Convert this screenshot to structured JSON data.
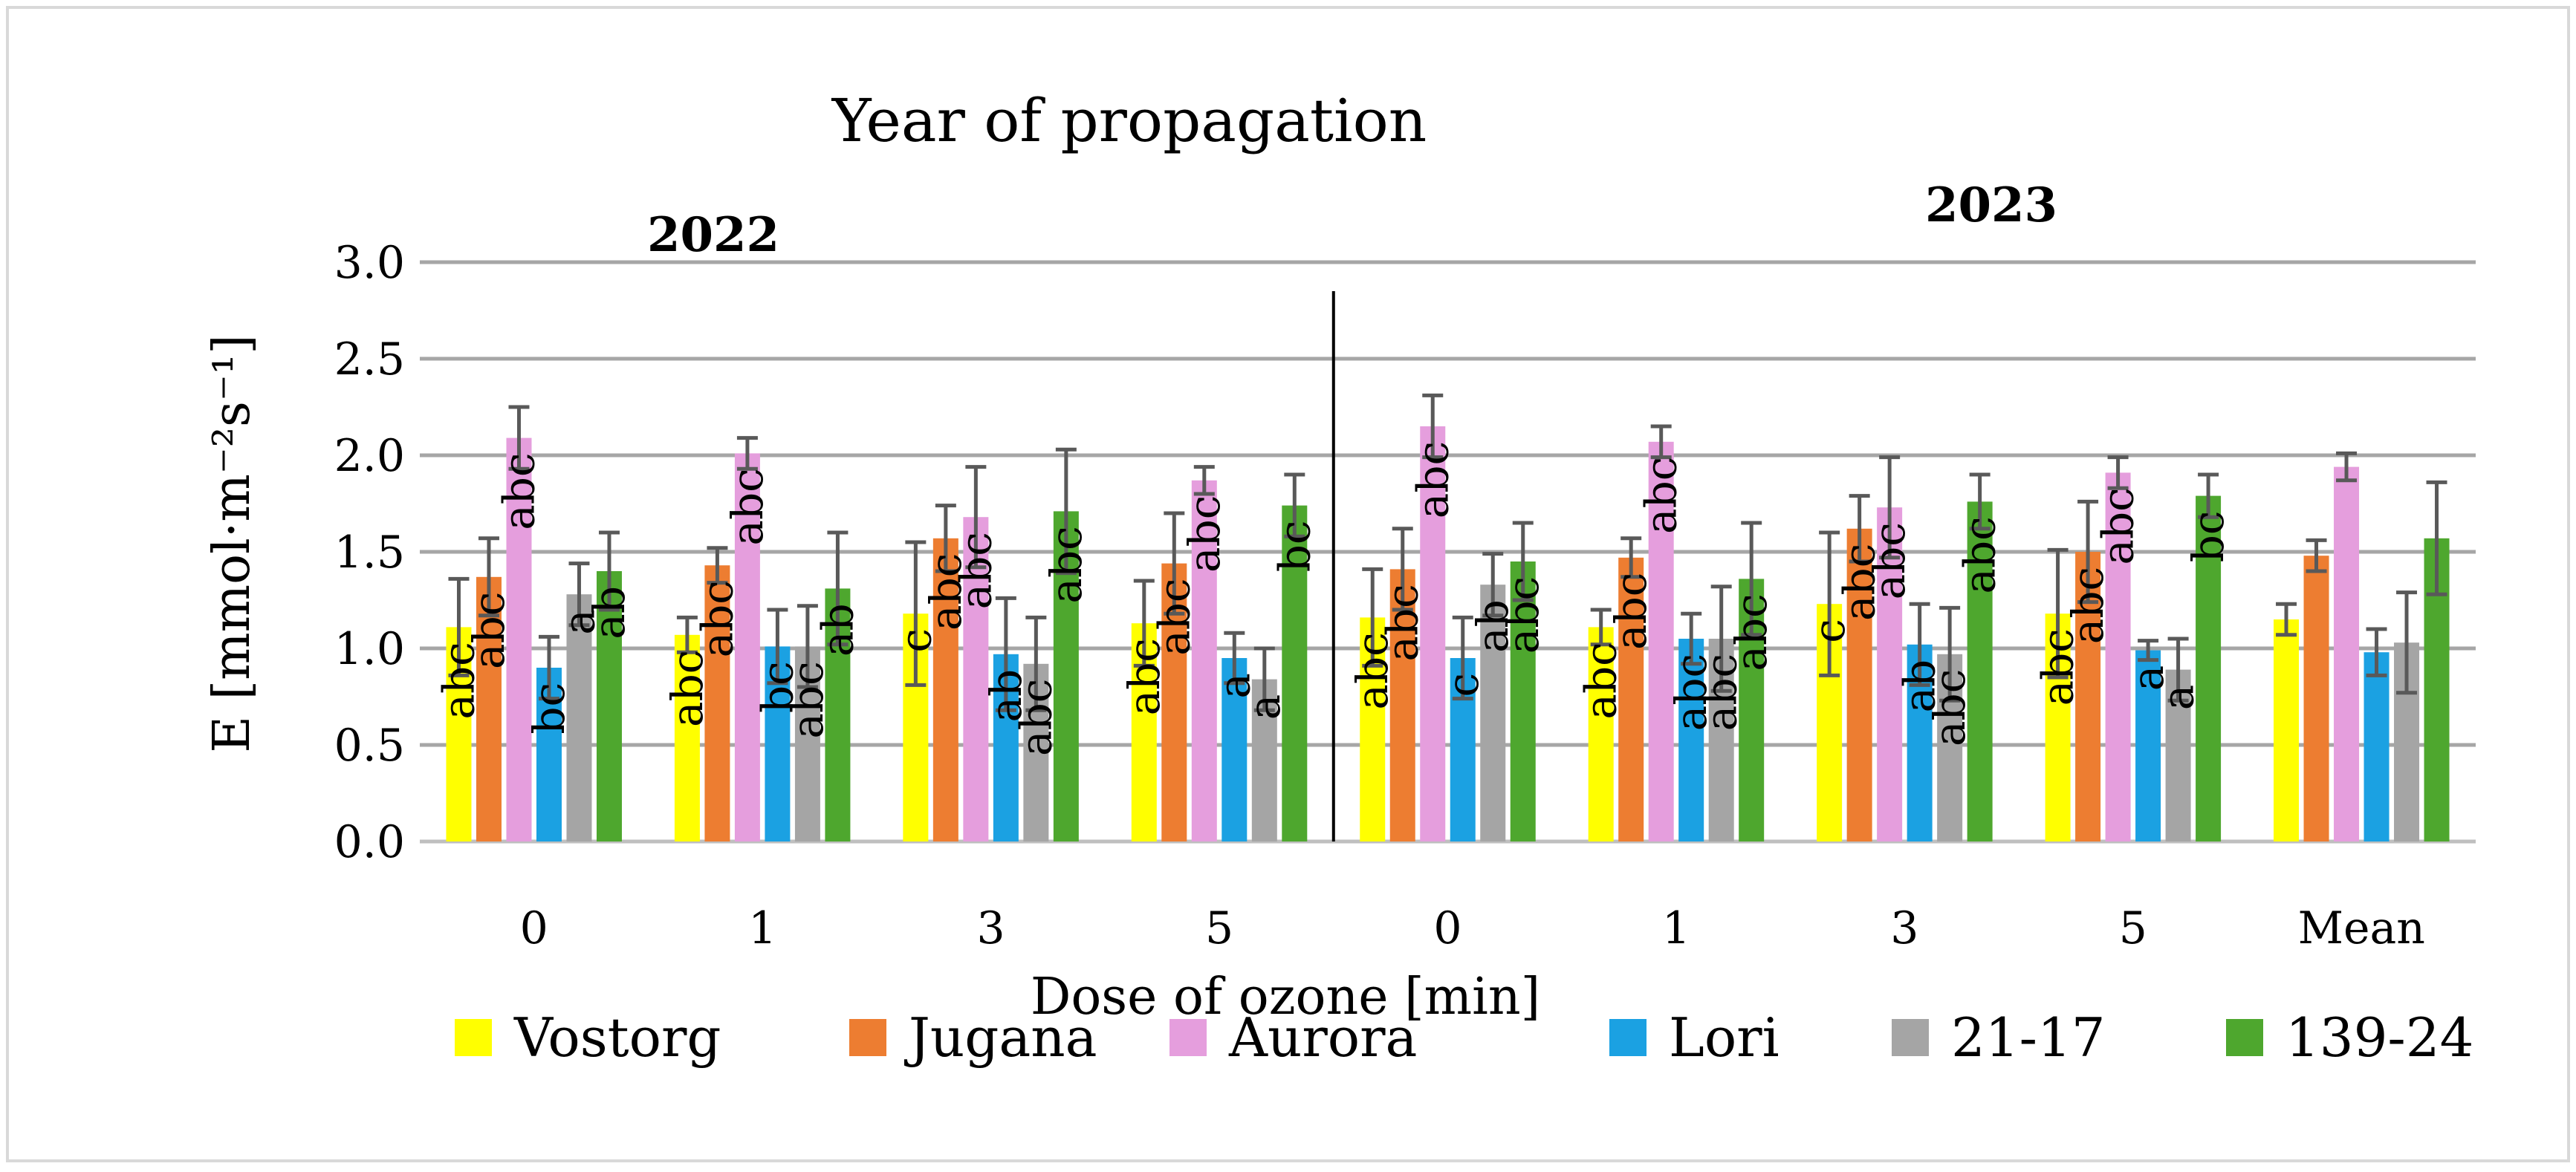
{
  "chart_data": {
    "type": "bar",
    "title": "Year of propagation",
    "xlabel": "Dose of ozone [min]",
    "ylabel": "E [mmol·m⁻²s⁻¹]",
    "ylim": [
      0,
      3
    ],
    "yticks": [
      "0.0",
      "0.5",
      "1.0",
      "1.5",
      "2.0",
      "2.5",
      "3.0"
    ],
    "grid": true,
    "legend_position": "bottom",
    "group_labels": [
      "2022",
      "2023"
    ],
    "categories": [
      "0",
      "1",
      "3",
      "5",
      "0",
      "1",
      "3",
      "5",
      "Mean"
    ],
    "series": [
      {
        "name": "Vostorg",
        "color": "#FFFF00",
        "values": [
          1.11,
          1.07,
          1.18,
          1.13,
          1.16,
          1.11,
          1.23,
          1.18,
          1.15
        ],
        "errors": [
          0.25,
          0.09,
          0.37,
          0.22,
          0.25,
          0.09,
          0.37,
          0.33,
          0.08
        ],
        "labels": [
          "abc",
          "abc",
          "c",
          "abc",
          "abc",
          "abc",
          "c",
          "abc",
          ""
        ]
      },
      {
        "name": "Jugana",
        "color": "#ED7D31",
        "values": [
          1.37,
          1.43,
          1.57,
          1.44,
          1.41,
          1.47,
          1.62,
          1.5,
          1.48
        ],
        "errors": [
          0.2,
          0.09,
          0.17,
          0.26,
          0.21,
          0.1,
          0.17,
          0.26,
          0.08
        ],
        "labels": [
          "abc",
          "abc",
          "abc",
          "abc",
          "abc",
          "abc",
          "abc",
          "abc",
          ""
        ]
      },
      {
        "name": "Aurora",
        "color": "#E59EDD",
        "values": [
          2.09,
          2.01,
          1.68,
          1.87,
          2.15,
          2.07,
          1.73,
          1.91,
          1.94
        ],
        "errors": [
          0.16,
          0.08,
          0.26,
          0.07,
          0.16,
          0.08,
          0.26,
          0.08,
          0.07
        ],
        "labels": [
          "abc",
          "abc",
          "abc",
          "abc",
          "abc",
          "abc",
          "abc",
          "abc",
          ""
        ]
      },
      {
        "name": "Lori",
        "color": "#1BA1E2",
        "values": [
          0.9,
          1.01,
          0.97,
          0.95,
          0.95,
          1.05,
          1.02,
          0.99,
          0.98
        ],
        "errors": [
          0.16,
          0.19,
          0.29,
          0.13,
          0.21,
          0.13,
          0.21,
          0.05,
          0.12
        ],
        "labels": [
          "bc",
          "bc",
          "ab",
          "a",
          "c",
          "abc",
          "ab",
          "a",
          ""
        ]
      },
      {
        "name": "21-17",
        "color": "#A5A5A5",
        "values": [
          1.28,
          1.01,
          0.92,
          0.84,
          1.33,
          1.05,
          0.97,
          0.89,
          1.03
        ],
        "errors": [
          0.16,
          0.21,
          0.24,
          0.16,
          0.16,
          0.27,
          0.24,
          0.16,
          0.26
        ],
        "labels": [
          "a",
          "abc",
          "abc",
          "a",
          "ab",
          "abc",
          "abc",
          "a",
          ""
        ]
      },
      {
        "name": "139-24",
        "color": "#4EA72E",
        "values": [
          1.4,
          1.31,
          1.71,
          1.74,
          1.45,
          1.36,
          1.76,
          1.79,
          1.57
        ],
        "errors": [
          0.2,
          0.29,
          0.32,
          0.16,
          0.2,
          0.29,
          0.14,
          0.11,
          0.29
        ],
        "labels": [
          "ab",
          "ab",
          "abc",
          "bc",
          "abc",
          "abc",
          "abc",
          "bc",
          ""
        ]
      }
    ]
  }
}
